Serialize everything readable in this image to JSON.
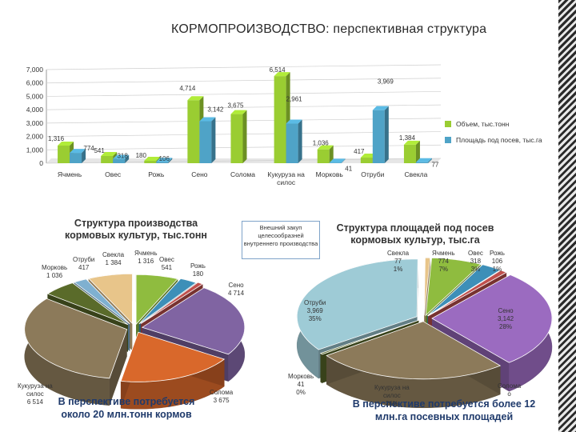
{
  "title": "КОРМОПРОИЗВОДСТВО: перспективная структура",
  "chart_data": [
    {
      "type": "bar",
      "categories": [
        "Ячмень",
        "Овес",
        "Рожь",
        "Сено",
        "Солома",
        "Кукуруза на силос",
        "Морковь",
        "Отруби",
        "Свекла"
      ],
      "series": [
        {
          "name": "Объем, тыс.тонн",
          "color": "#9acd32",
          "values": [
            1316,
            541,
            180,
            4714,
            3675,
            6514,
            1036,
            417,
            1384
          ],
          "labels": [
            "1,316",
            "541",
            "180",
            "4,714",
            "3,675",
            "6,514",
            "1,036",
            "417",
            "1,384"
          ]
        },
        {
          "name": "Площадь под посев, тыс.га",
          "color": "#4fa3c7",
          "values": [
            774,
            318,
            106,
            3142,
            null,
            2961,
            41,
            3969,
            77
          ],
          "labels": [
            "774",
            "318",
            "106",
            "3,142",
            "",
            "2,961",
            "41",
            "3,969",
            "77"
          ]
        }
      ],
      "ylim": [
        0,
        7000
      ],
      "yticks": [
        "0",
        "1,000",
        "2,000",
        "3,000",
        "4,000",
        "5,000",
        "6,000",
        "7,000"
      ],
      "grid": true,
      "legend_position": "right"
    },
    {
      "type": "pie",
      "title": "Структура производства кормовых культур, тыс.тонн",
      "slices": [
        {
          "label": "Ячмень",
          "value": 1316,
          "value_label": "1 316",
          "color": "#8fbc3f"
        },
        {
          "label": "Овес",
          "value": 541,
          "value_label": "541",
          "color": "#3d8fb8"
        },
        {
          "label": "Рожь",
          "value": 180,
          "value_label": "180",
          "color": "#c0504d"
        },
        {
          "label": "Сено",
          "value": 4714,
          "value_label": "4 714",
          "color": "#8064a2"
        },
        {
          "label": "Солома",
          "value": 3675,
          "value_label": "3 675",
          "color": "#d9682b"
        },
        {
          "label": "Кукуруза на силос",
          "value": 6514,
          "value_label": "6 514",
          "color": "#8c7a5a"
        },
        {
          "label": "Морковь",
          "value": 1036,
          "value_label": "1 036",
          "color": "#5a6b2a"
        },
        {
          "label": "Отруби",
          "value": 417,
          "value_label": "417",
          "color": "#7fb0d0"
        },
        {
          "label": "Свекла",
          "value": 1384,
          "value_label": "1 384",
          "color": "#e8c58a"
        }
      ]
    },
    {
      "type": "pie",
      "title": "Структура площадей под посев кормовых культур, тыс.га",
      "slices": [
        {
          "label": "Ячмень",
          "value": 774,
          "value_label": "774",
          "pct": "7%",
          "color": "#8fbc3f"
        },
        {
          "label": "Овес",
          "value": 318,
          "value_label": "318",
          "pct": "3%",
          "color": "#3d8fb8"
        },
        {
          "label": "Рожь",
          "value": 106,
          "value_label": "106",
          "pct": "1%",
          "color": "#c0504d"
        },
        {
          "label": "Сено",
          "value": 3142,
          "value_label": "3,142",
          "pct": "28%",
          "color": "#9b6bc0"
        },
        {
          "label": "Солома",
          "value": 0,
          "value_label": "0",
          "pct": "",
          "color": "#d9682b"
        },
        {
          "label": "Кукуруза на силос",
          "value": 2961,
          "value_label": "",
          "pct": "26%",
          "color": "#8c7a5a"
        },
        {
          "label": "Морковь",
          "value": 41,
          "value_label": "41",
          "pct": "0%",
          "color": "#5a6b2a"
        },
        {
          "label": "Отруби",
          "value": 3969,
          "value_label": "3,969",
          "pct": "35%",
          "color": "#9ecbd6"
        },
        {
          "label": "Свекла",
          "value": 77,
          "value_label": "77",
          "pct": "1%",
          "color": "#e8c58a"
        }
      ]
    }
  ],
  "callout": "Внешний закуп целесообразней внутреннего производства",
  "note_left": "В перспективе потребуется около 20 млн.тонн кормов",
  "note_right": "В перспективе потребуется более 12 млн.га посевных площадей"
}
